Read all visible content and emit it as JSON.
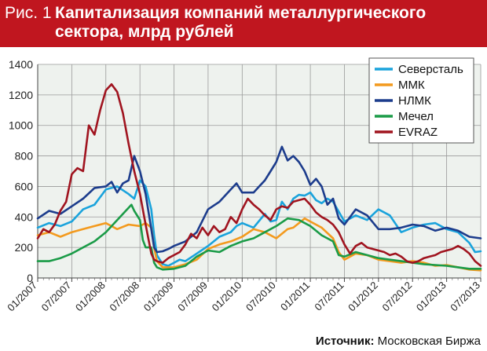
{
  "header": {
    "prefix": "Рис. 1",
    "title": "Капитализация компаний металлургического сектора, млрд рублей"
  },
  "source": {
    "label": "Источник:",
    "value": "Московская Биржа"
  },
  "chart_data": {
    "type": "line",
    "title": "Капитализация компаний металлургического сектора, млрд рублей",
    "xlabel": "",
    "ylabel": "",
    "ylim": [
      0,
      1400
    ],
    "yticks": [
      0,
      200,
      400,
      600,
      800,
      1000,
      1200,
      1400
    ],
    "grid": true,
    "legend_position": "top-right",
    "x_tick_labels": [
      "01/2007",
      "07/2007",
      "01/2008",
      "07/2008",
      "01/2009",
      "07/2009",
      "01/2010",
      "07/2010",
      "01/2011",
      "07/2011",
      "01/2012",
      "07/2012",
      "01/2013",
      "07/2013"
    ],
    "x_range_months": [
      0,
      78
    ],
    "series": [
      {
        "name": "Северсталь",
        "color": "#1aa3dc",
        "x": [
          0,
          2,
          4,
          6,
          8,
          10,
          12,
          14,
          16,
          17,
          18,
          19,
          20,
          20.5,
          21,
          22,
          23,
          24,
          25,
          26,
          28,
          30,
          32,
          34,
          35,
          36,
          38,
          40,
          41,
          42,
          43,
          44,
          45,
          46,
          47,
          48,
          49,
          50,
          51,
          52,
          54,
          56,
          58,
          60,
          62,
          64,
          66,
          68,
          70,
          72,
          74,
          76,
          77,
          78
        ],
        "y": [
          330,
          360,
          340,
          370,
          450,
          480,
          580,
          600,
          550,
          520,
          640,
          600,
          450,
          280,
          150,
          90,
          80,
          100,
          120,
          110,
          160,
          210,
          270,
          300,
          340,
          360,
          330,
          420,
          370,
          380,
          500,
          450,
          520,
          545,
          540,
          560,
          510,
          490,
          520,
          500,
          370,
          410,
          380,
          450,
          410,
          300,
          330,
          350,
          360,
          320,
          300,
          230,
          170,
          175
        ]
      },
      {
        "name": "ММК",
        "color": "#f39a1e",
        "x": [
          0,
          2,
          4,
          6,
          8,
          10,
          12,
          14,
          16,
          18,
          19,
          20,
          20.5,
          21,
          22,
          24,
          26,
          28,
          30,
          32,
          34,
          36,
          38,
          40,
          42,
          44,
          45,
          46,
          47,
          48,
          50,
          52,
          53,
          54,
          56,
          58,
          60,
          62,
          64,
          66,
          68,
          70,
          72,
          74,
          76,
          78
        ],
        "y": [
          280,
          300,
          270,
          300,
          320,
          340,
          360,
          320,
          350,
          340,
          360,
          330,
          200,
          110,
          70,
          70,
          90,
          120,
          190,
          220,
          240,
          270,
          320,
          300,
          260,
          320,
          330,
          360,
          390,
          370,
          330,
          260,
          170,
          120,
          160,
          150,
          120,
          110,
          100,
          110,
          100,
          80,
          85,
          70,
          55,
          50
        ]
      },
      {
        "name": "НЛМК",
        "color": "#1c3c8c",
        "x": [
          0,
          2,
          4,
          6,
          8,
          10,
          12,
          13,
          14,
          15,
          16,
          17,
          18,
          19,
          20,
          20.5,
          21,
          22,
          23,
          24,
          26,
          28,
          30,
          32,
          34,
          35,
          36,
          38,
          39,
          40,
          41,
          42,
          43,
          44,
          45,
          46,
          47,
          48,
          49,
          50,
          51,
          52,
          53,
          54,
          56,
          58,
          60,
          62,
          64,
          66,
          68,
          70,
          72,
          74,
          76,
          78
        ],
        "y": [
          390,
          440,
          420,
          470,
          520,
          590,
          600,
          630,
          560,
          620,
          640,
          800,
          700,
          550,
          320,
          200,
          170,
          175,
          190,
          210,
          240,
          300,
          450,
          500,
          580,
          620,
          560,
          560,
          600,
          640,
          700,
          760,
          860,
          770,
          800,
          760,
          700,
          610,
          650,
          600,
          480,
          520,
          390,
          350,
          450,
          410,
          320,
          320,
          330,
          350,
          340,
          310,
          330,
          310,
          270,
          260
        ]
      },
      {
        "name": "Мечел",
        "color": "#1a9b47",
        "x": [
          0,
          2,
          4,
          6,
          8,
          10,
          12,
          14,
          16,
          16.5,
          17,
          18,
          18.5,
          19,
          20,
          20.5,
          21,
          22,
          24,
          26,
          28,
          30,
          32,
          34,
          36,
          38,
          40,
          42,
          44,
          46,
          48,
          50,
          52,
          53,
          54,
          56,
          58,
          60,
          62,
          64,
          66,
          68,
          70,
          72,
          74,
          76,
          78
        ],
        "y": [
          110,
          110,
          130,
          160,
          200,
          240,
          300,
          380,
          460,
          480,
          440,
          380,
          250,
          200,
          200,
          100,
          70,
          55,
          60,
          80,
          140,
          180,
          170,
          210,
          240,
          260,
          300,
          340,
          390,
          380,
          340,
          280,
          240,
          150,
          140,
          170,
          150,
          130,
          120,
          110,
          100,
          90,
          85,
          80,
          70,
          60,
          60
        ]
      },
      {
        "name": "EVRAZ",
        "color": "#a0141f",
        "x": [
          0,
          1,
          2,
          3,
          4,
          5,
          6,
          7,
          8,
          9,
          10,
          11,
          12,
          13,
          14,
          15,
          16,
          17,
          18,
          19,
          20,
          20.5,
          21,
          22,
          23,
          24,
          25,
          26,
          27,
          28,
          29,
          30,
          31,
          32,
          33,
          34,
          35,
          36,
          37,
          38,
          39,
          40,
          41,
          42,
          43,
          44,
          45,
          46,
          47,
          48,
          49,
          50,
          51,
          52,
          53,
          54,
          55,
          56,
          57,
          58,
          59,
          60,
          61,
          62,
          63,
          64,
          65,
          66,
          67,
          68,
          69,
          70,
          71,
          72,
          73,
          74,
          75,
          76,
          77,
          78
        ],
        "y": [
          260,
          320,
          300,
          350,
          440,
          500,
          680,
          720,
          700,
          1000,
          940,
          1100,
          1230,
          1270,
          1220,
          1080,
          880,
          700,
          550,
          350,
          160,
          120,
          110,
          100,
          130,
          150,
          170,
          220,
          290,
          260,
          330,
          280,
          340,
          300,
          320,
          400,
          360,
          450,
          520,
          480,
          450,
          410,
          380,
          450,
          470,
          460,
          500,
          510,
          520,
          480,
          430,
          400,
          380,
          350,
          300,
          220,
          160,
          210,
          230,
          200,
          190,
          180,
          170,
          150,
          160,
          140,
          110,
          100,
          110,
          130,
          140,
          150,
          170,
          180,
          190,
          210,
          190,
          160,
          110,
          80
        ]
      }
    ]
  }
}
